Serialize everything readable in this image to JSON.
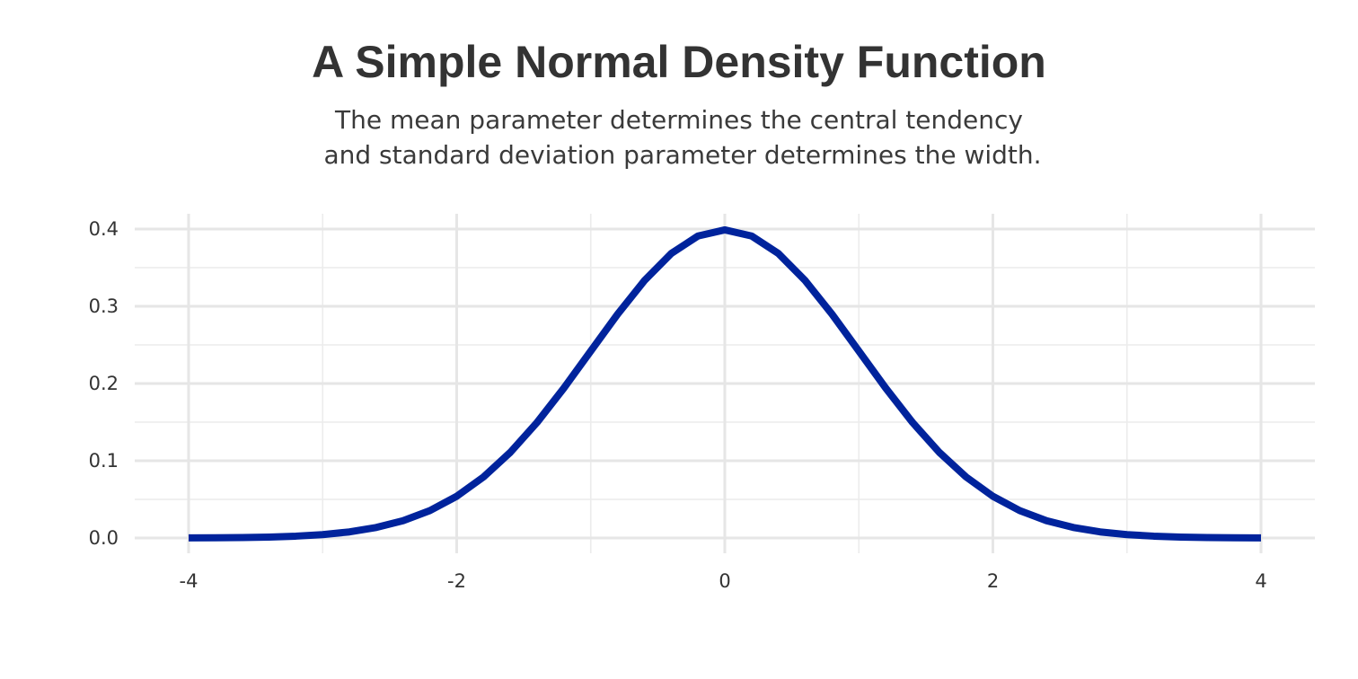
{
  "chart_data": {
    "type": "line",
    "title": "A Simple Normal Density Function",
    "subtitle": [
      "The mean parameter determines the central tendency",
      "and standard deviation parameter determines the width."
    ],
    "xlabel": "",
    "ylabel": "",
    "xlim": [
      -4,
      4
    ],
    "ylim": [
      0,
      0.4
    ],
    "x_ticks": [
      -4,
      -2,
      0,
      2,
      4
    ],
    "x_tick_labels": [
      "-4",
      "-2",
      "0",
      "2",
      "4"
    ],
    "y_ticks": [
      0,
      0.1,
      0.2,
      0.3,
      0.4
    ],
    "y_tick_labels": [
      "0.0",
      "0.1",
      "0.2",
      "0.3",
      "0.4"
    ],
    "grid": true,
    "legend": "none",
    "series": [
      {
        "color": "#00239c",
        "x": [
          -4.0,
          -3.8,
          -3.6,
          -3.4,
          -3.2,
          -3.0,
          -2.8,
          -2.6,
          -2.4,
          -2.2,
          -2.0,
          -1.8,
          -1.6,
          -1.4,
          -1.2,
          -1.0,
          -0.8,
          -0.6,
          -0.4,
          -0.2,
          0.0,
          0.2,
          0.4,
          0.6,
          0.8,
          1.0,
          1.2,
          1.4,
          1.6,
          1.8,
          2.0,
          2.2,
          2.4,
          2.6,
          2.8,
          3.0,
          3.2,
          3.4,
          3.6,
          3.8,
          4.0
        ],
        "y": [
          0.0001,
          0.0003,
          0.0006,
          0.0012,
          0.0024,
          0.0044,
          0.0079,
          0.0136,
          0.0224,
          0.0355,
          0.054,
          0.079,
          0.1109,
          0.1497,
          0.1942,
          0.242,
          0.2897,
          0.3332,
          0.3683,
          0.391,
          0.3989,
          0.391,
          0.3683,
          0.3332,
          0.2897,
          0.242,
          0.1942,
          0.1497,
          0.1109,
          0.079,
          0.054,
          0.0355,
          0.0224,
          0.0136,
          0.0079,
          0.0044,
          0.0024,
          0.0012,
          0.0006,
          0.0003,
          0.0001
        ]
      }
    ]
  }
}
